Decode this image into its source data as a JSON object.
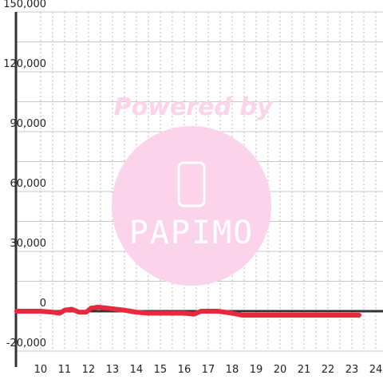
{
  "chart_data": {
    "type": "line",
    "x": [
      9,
      10,
      10.5,
      10.8,
      11,
      11.3,
      11.6,
      11.9,
      12.1,
      12.4,
      12.8,
      13.5,
      14,
      14.5,
      15,
      16,
      16.4,
      16.7,
      17.4,
      18,
      18.4,
      19,
      23.3
    ],
    "series": [
      {
        "color": "#e8283c",
        "values": [
          0,
          0,
          -500,
          -1000,
          500,
          1000,
          -500,
          -500,
          1500,
          2000,
          1500,
          500,
          -500,
          -1000,
          -1000,
          -1000,
          -1500,
          0,
          0,
          -1000,
          -2000,
          -2000,
          -2000
        ]
      }
    ],
    "xlim": [
      8.97,
      24.3
    ],
    "xticks": [
      10,
      11,
      12,
      13,
      14,
      15,
      16,
      17,
      18,
      19,
      20,
      21,
      22,
      23,
      24
    ],
    "ylim": [
      -20000,
      150000
    ],
    "yticks": [
      {
        "value": -20000,
        "label": "-20,000"
      },
      {
        "value": 0,
        "label": "0"
      },
      {
        "value": 30000,
        "label": "30,000"
      },
      {
        "value": 60000,
        "label": "60,000"
      },
      {
        "value": 90000,
        "label": "90,000"
      },
      {
        "value": 120000,
        "label": "120,000"
      },
      {
        "value": 150000,
        "label": "150,000"
      }
    ],
    "grid": true,
    "watermark": {
      "title": "Powered by",
      "logo": "PAPIMO"
    }
  }
}
